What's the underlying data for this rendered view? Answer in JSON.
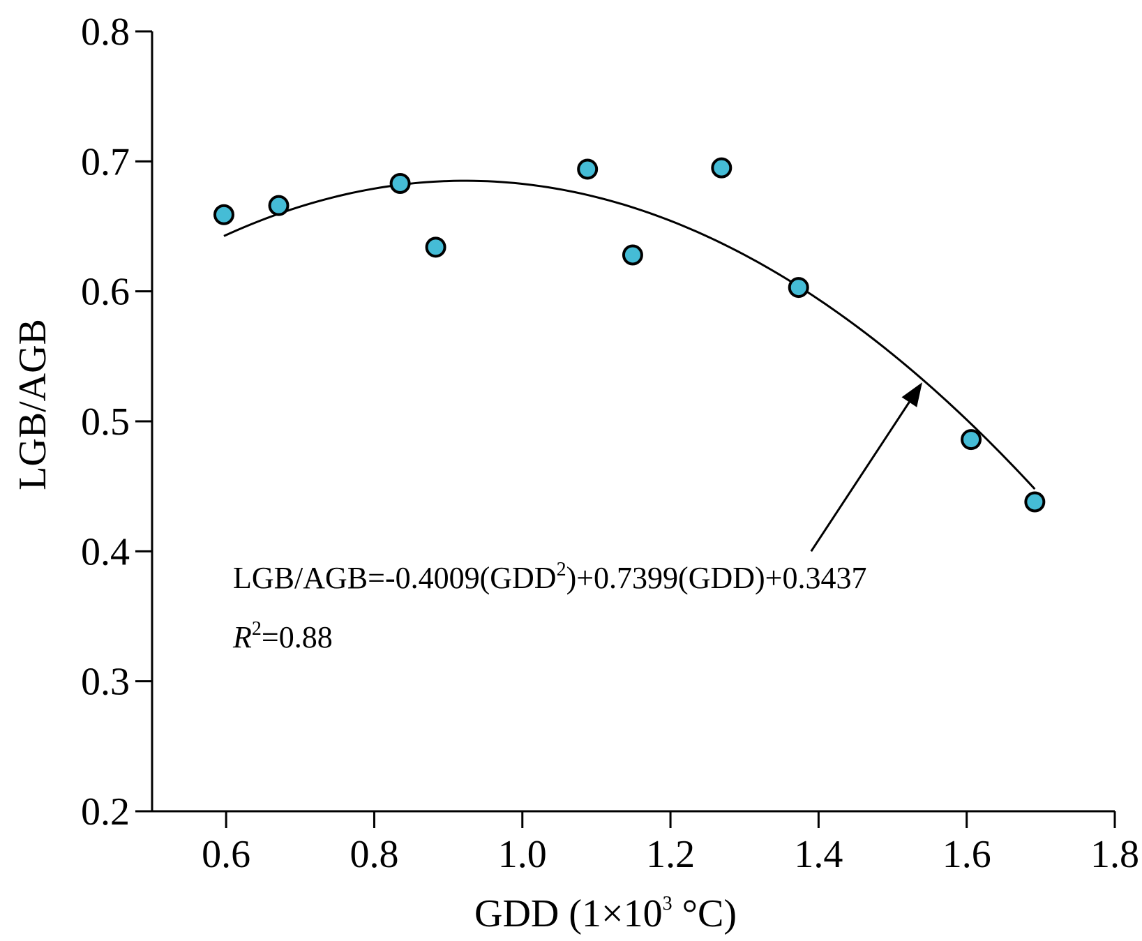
{
  "chart_data": {
    "type": "scatter",
    "xlabel": {
      "main": "GDD (1×10",
      "sup": "3",
      "unit": " °C)"
    },
    "ylabel": "LGB/AGB",
    "xlim": [
      0.5,
      1.8
    ],
    "ylim": [
      0.2,
      0.8
    ],
    "x_ticks": [
      0.6,
      0.8,
      1.0,
      1.2,
      1.4,
      1.6,
      1.8
    ],
    "x_tick_labels": [
      "0.6",
      "0.8",
      "1.0",
      "1.2",
      "1.4",
      "1.6",
      "1.8"
    ],
    "y_ticks": [
      0.2,
      0.3,
      0.4,
      0.5,
      0.6,
      0.7,
      0.8
    ],
    "y_tick_labels": [
      "0.2",
      "0.3",
      "0.4",
      "0.5",
      "0.6",
      "0.7",
      "0.8"
    ],
    "points": [
      {
        "x": 0.597,
        "y": 0.659
      },
      {
        "x": 0.671,
        "y": 0.666
      },
      {
        "x": 0.835,
        "y": 0.683
      },
      {
        "x": 0.883,
        "y": 0.634
      },
      {
        "x": 1.088,
        "y": 0.694
      },
      {
        "x": 1.149,
        "y": 0.628
      },
      {
        "x": 1.269,
        "y": 0.695
      },
      {
        "x": 1.373,
        "y": 0.603
      },
      {
        "x": 1.606,
        "y": 0.486
      },
      {
        "x": 1.692,
        "y": 0.438
      }
    ],
    "fit": {
      "type": "quadratic",
      "a": -0.4009,
      "b": 0.7399,
      "c": 0.3437,
      "x_range": [
        0.597,
        1.692
      ]
    },
    "annotation": {
      "equation_part1": "LGB/AGB=-0.4009(GDD",
      "equation_sup": "2",
      "equation_part2": ")+0.7399(GDD)+0.3437",
      "r2_label": "R",
      "r2_sup": "2",
      "r2_value": "=0.88"
    },
    "arrow": {
      "from": {
        "x": 1.39,
        "y": 0.4
      },
      "to": {
        "x": 1.54,
        "y": 0.53
      }
    },
    "colors": {
      "point_fill": "#45bcd6",
      "point_stroke": "#000000",
      "fit_line": "#000000",
      "axis": "#000000"
    }
  }
}
